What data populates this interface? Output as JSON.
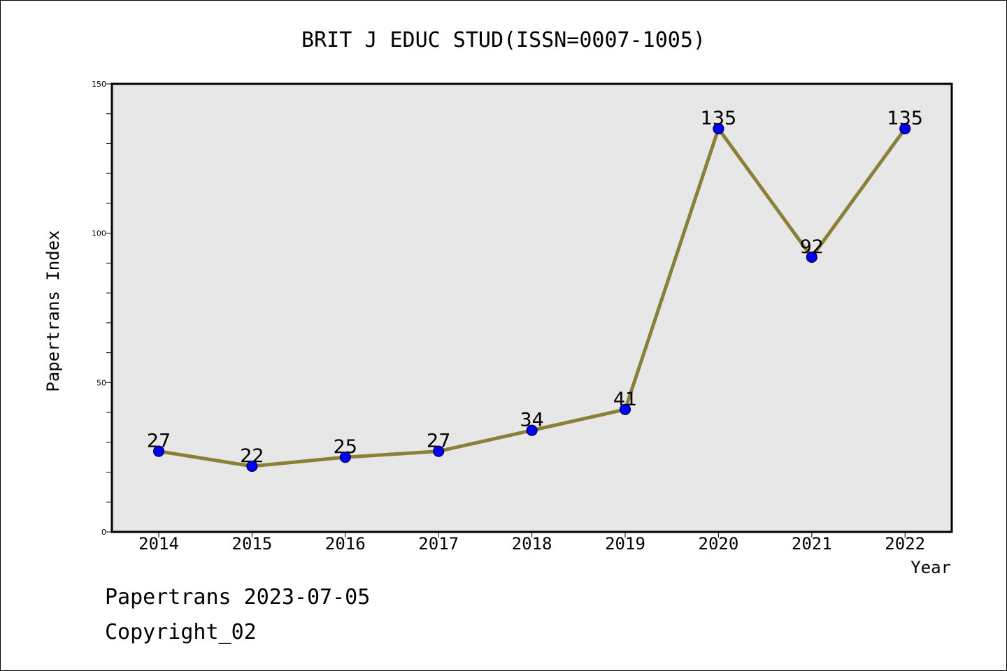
{
  "chart_data": {
    "type": "line",
    "title": "BRIT J EDUC STUD(ISSN=0007-1005)",
    "xlabel": "Year",
    "ylabel": "Papertrans Index",
    "categories": [
      "2014",
      "2015",
      "2016",
      "2017",
      "2018",
      "2019",
      "2020",
      "2021",
      "2022"
    ],
    "values": [
      27,
      22,
      25,
      27,
      34,
      41,
      135,
      92,
      135
    ],
    "data_labels": [
      "27",
      "22",
      "25",
      "27",
      "34",
      "41",
      "135",
      "92",
      "135"
    ],
    "ylim": [
      0,
      150
    ],
    "y_ticks": [
      "0",
      "50",
      "100",
      "150"
    ],
    "y_minor_step": 10,
    "grid": false,
    "plot_background": "#e7e7e7",
    "line_color": "#8b8038",
    "marker_color": "#0000ff"
  },
  "footer": {
    "line1": "Papertrans 2023-07-05",
    "line2": "Copyright_02"
  }
}
